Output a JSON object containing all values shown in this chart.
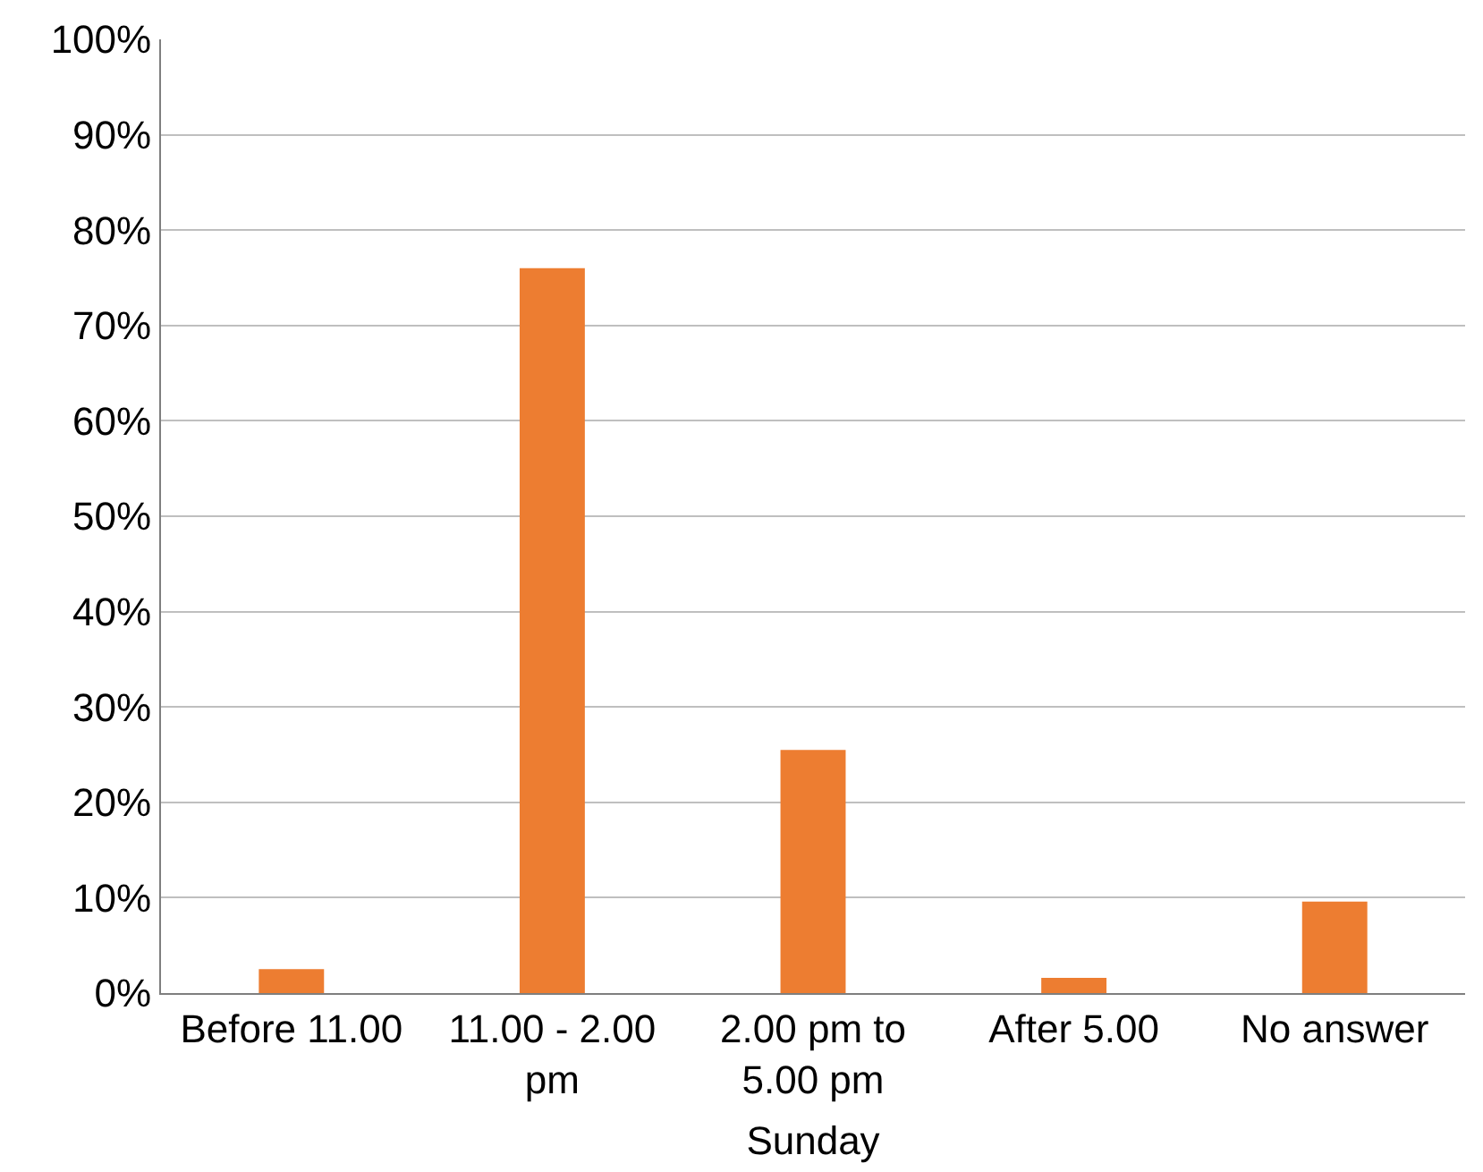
{
  "chart_data": {
    "type": "bar",
    "xlabel": "Sunday",
    "categories": [
      "Before 11.00",
      "11.00 - 2.00 pm",
      "2.00 pm to 5.00 pm",
      "After 5.00",
      "No answer"
    ],
    "values": [
      2.5,
      76,
      25.5,
      1.6,
      9.6
    ],
    "color": "#ed7d31",
    "ylim": [
      0,
      100
    ],
    "yticks": [
      {
        "value": 0,
        "label": "0%"
      },
      {
        "value": 10,
        "label": "10%"
      },
      {
        "value": 20,
        "label": "20%"
      },
      {
        "value": 30,
        "label": "30%"
      },
      {
        "value": 40,
        "label": "40%"
      },
      {
        "value": 50,
        "label": "50%"
      },
      {
        "value": 60,
        "label": "60%"
      },
      {
        "value": 70,
        "label": "70%"
      },
      {
        "value": 80,
        "label": "80%"
      },
      {
        "value": 90,
        "label": "90%"
      },
      {
        "value": 100,
        "label": "100%"
      }
    ],
    "grid": "y"
  }
}
